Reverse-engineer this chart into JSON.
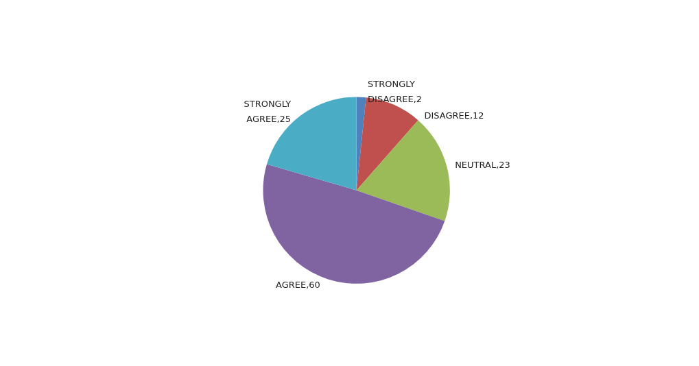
{
  "chart_data": {
    "type": "pie",
    "categories": [
      "STRONGLY DISAGREE",
      "DISAGREE",
      "NEUTRAL",
      "AGREE",
      "STRONGLY AGREE"
    ],
    "values": [
      2,
      12,
      23,
      60,
      25
    ],
    "colors": [
      "#4f81bd",
      "#c0504d",
      "#9bbb59",
      "#8064a2",
      "#4bacc6"
    ],
    "value_labels": [
      ",2",
      ",12",
      ",23",
      ",60",
      ",25"
    ],
    "legend": false
  }
}
